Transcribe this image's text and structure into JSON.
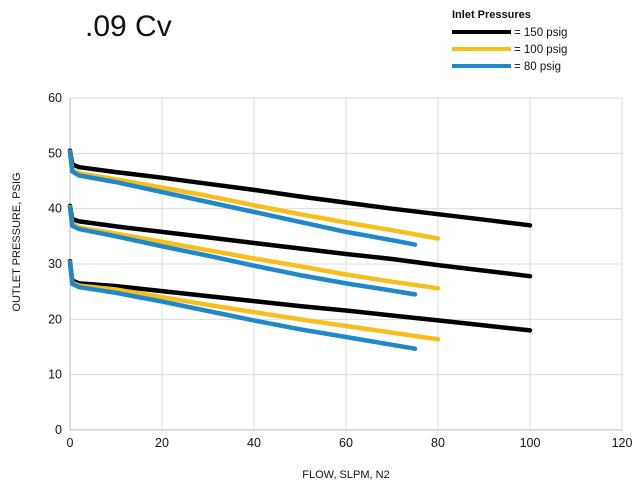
{
  "chart_data": {
    "type": "line",
    "title": ".09 Cv",
    "xlabel": "FLOW, SLPM, N2",
    "ylabel": "OUTLET PRESSURE, PSIG",
    "xlim": [
      0,
      120
    ],
    "ylim": [
      0,
      60
    ],
    "xticks": [
      0,
      20,
      40,
      60,
      80,
      100,
      120
    ],
    "yticks": [
      0,
      10,
      20,
      30,
      40,
      50,
      60
    ],
    "grid": true,
    "legend": {
      "title": "Inlet Pressures",
      "placement": "top-right",
      "entries": [
        {
          "label": "= 150 psig",
          "color": "#000000"
        },
        {
          "label": "= 100 psig",
          "color": "#F7BE1E"
        },
        {
          "label": "= 80 psig",
          "color": "#1E88C8"
        }
      ]
    },
    "series": [
      {
        "inlet": 150,
        "color": "#000000",
        "set_pressure": 50,
        "x": [
          0,
          0.5,
          2,
          10,
          20,
          30,
          40,
          50,
          60,
          70,
          80,
          90,
          100
        ],
        "y": [
          50.5,
          48.0,
          47.5,
          46.6,
          45.6,
          44.5,
          43.4,
          42.2,
          41.1,
          40.0,
          39.0,
          38.0,
          37.0
        ]
      },
      {
        "inlet": 100,
        "color": "#F7BE1E",
        "set_pressure": 50,
        "x": [
          0,
          0.5,
          2,
          10,
          20,
          30,
          40,
          50,
          60,
          70,
          80
        ],
        "y": [
          50.3,
          47.0,
          46.4,
          45.3,
          43.8,
          42.3,
          40.6,
          39.0,
          37.5,
          36.1,
          34.6
        ]
      },
      {
        "inlet": 80,
        "color": "#1E88C8",
        "set_pressure": 50,
        "x": [
          0,
          0.5,
          2,
          10,
          20,
          30,
          40,
          50,
          60,
          70,
          75
        ],
        "y": [
          50.2,
          46.7,
          46.0,
          44.8,
          43.0,
          41.2,
          39.4,
          37.6,
          35.8,
          34.3,
          33.5
        ]
      },
      {
        "inlet": 150,
        "color": "#000000",
        "set_pressure": 40,
        "x": [
          0,
          0.5,
          2,
          10,
          20,
          30,
          40,
          50,
          60,
          70,
          80,
          90,
          100
        ],
        "y": [
          40.5,
          38.1,
          37.7,
          36.8,
          35.8,
          34.8,
          33.8,
          32.8,
          31.8,
          30.9,
          29.8,
          28.8,
          27.8
        ]
      },
      {
        "inlet": 100,
        "color": "#F7BE1E",
        "set_pressure": 40,
        "x": [
          0,
          0.5,
          2,
          10,
          20,
          30,
          40,
          50,
          60,
          70,
          80
        ],
        "y": [
          40.3,
          37.3,
          36.6,
          35.5,
          34.0,
          32.5,
          31.0,
          29.6,
          28.1,
          26.8,
          25.6
        ]
      },
      {
        "inlet": 80,
        "color": "#1E88C8",
        "set_pressure": 40,
        "x": [
          0,
          0.5,
          2,
          10,
          20,
          30,
          40,
          50,
          60,
          70,
          75
        ],
        "y": [
          40.2,
          36.9,
          36.3,
          35.0,
          33.2,
          31.5,
          29.7,
          28.0,
          26.5,
          25.2,
          24.5
        ]
      },
      {
        "inlet": 150,
        "color": "#000000",
        "set_pressure": 30,
        "x": [
          0,
          0.5,
          2,
          10,
          20,
          30,
          40,
          50,
          60,
          70,
          80,
          90,
          100
        ],
        "y": [
          30.5,
          27.0,
          26.5,
          26.0,
          25.1,
          24.2,
          23.3,
          22.4,
          21.6,
          20.7,
          19.8,
          18.9,
          18.0
        ]
      },
      {
        "inlet": 100,
        "color": "#F7BE1E",
        "set_pressure": 30,
        "x": [
          0,
          0.5,
          2,
          10,
          20,
          30,
          40,
          50,
          60,
          70,
          80
        ],
        "y": [
          30.3,
          26.6,
          26.1,
          25.4,
          24.0,
          22.6,
          21.3,
          20.0,
          18.8,
          17.6,
          16.4
        ]
      },
      {
        "inlet": 80,
        "color": "#1E88C8",
        "set_pressure": 30,
        "x": [
          0,
          0.5,
          2,
          10,
          20,
          30,
          40,
          50,
          60,
          70,
          75
        ],
        "y": [
          30.2,
          26.4,
          25.8,
          24.8,
          23.2,
          21.5,
          19.8,
          18.2,
          16.8,
          15.4,
          14.7
        ]
      }
    ]
  }
}
